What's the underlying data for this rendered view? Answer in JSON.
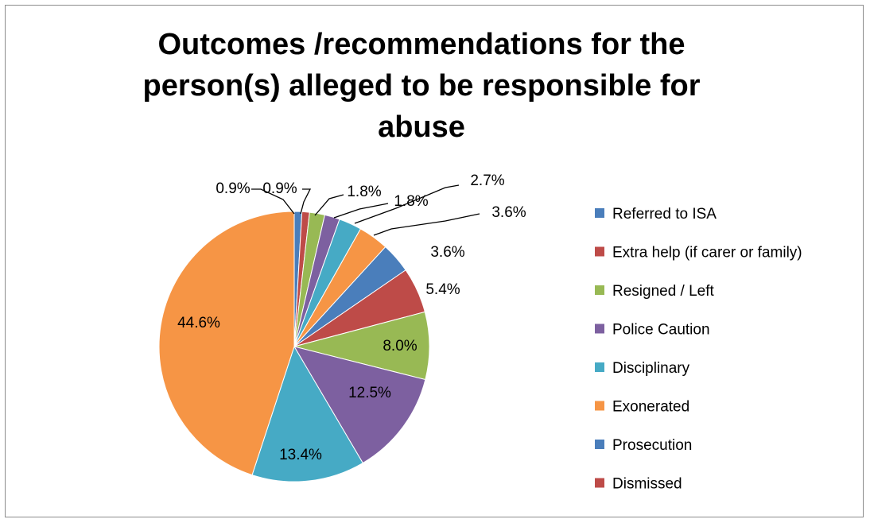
{
  "chart_data": {
    "type": "pie",
    "title": "Outcomes /recommendations for the\nperson(s) alleged to be responsible for\nabuse",
    "legend_position": "right",
    "slices": [
      {
        "label": "Referred to ISA",
        "value": 0.9,
        "value_label": "0.9%",
        "color": "#4a7ebb"
      },
      {
        "label": "Extra help (if carer or family)",
        "value": 0.9,
        "value_label": "0.9%",
        "color": "#be4b48"
      },
      {
        "label": "Resigned / Left",
        "value": 1.8,
        "value_label": "1.8%",
        "color": "#98b954"
      },
      {
        "label": "Police Caution",
        "value": 1.8,
        "value_label": "1.8%",
        "color": "#7d60a0"
      },
      {
        "label": "Disciplinary",
        "value": 2.7,
        "value_label": "2.7%",
        "color": "#46aac5"
      },
      {
        "label": "Exonerated",
        "value": 3.6,
        "value_label": "3.6%",
        "color": "#f69545"
      },
      {
        "label": "Prosecution",
        "value": 3.6,
        "value_label": "3.6%",
        "color": "#4a7ebb"
      },
      {
        "label": "Dismissed",
        "value": 5.4,
        "value_label": "5.4%",
        "color": "#be4b48"
      },
      {
        "label": "",
        "value": 8.0,
        "value_label": "8.0%",
        "color": "#98b954"
      },
      {
        "label": "",
        "value": 12.5,
        "value_label": "12.5%",
        "color": "#7d60a0"
      },
      {
        "label": "",
        "value": 13.4,
        "value_label": "13.4%",
        "color": "#46aac5"
      },
      {
        "label": "",
        "value": 44.6,
        "value_label": "44.6%",
        "color": "#f69545"
      }
    ],
    "legend": [
      {
        "label": "Referred to ISA",
        "color": "#4a7ebb"
      },
      {
        "label": "Extra help (if carer or family)",
        "color": "#be4b48"
      },
      {
        "label": "Resigned / Left",
        "color": "#98b954"
      },
      {
        "label": "Police Caution",
        "color": "#7d60a0"
      },
      {
        "label": "Disciplinary",
        "color": "#46aac5"
      },
      {
        "label": "Exonerated",
        "color": "#f69545"
      },
      {
        "label": "Prosecution",
        "color": "#4a7ebb"
      },
      {
        "label": "Dismissed",
        "color": "#be4b48"
      }
    ]
  }
}
